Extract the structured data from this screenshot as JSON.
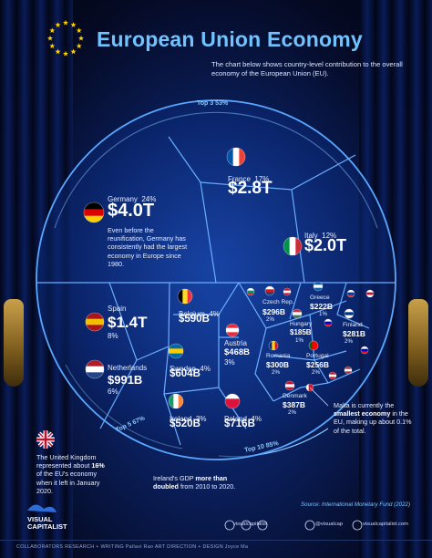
{
  "title": "European Union Economy",
  "subtitle": "The chart below shows country-level contribution to the overall economy of the European Union (EU).",
  "chart_data": {
    "type": "voronoi-treemap",
    "unit": "USD",
    "rings": [
      {
        "label": "Top 3",
        "pct": "53%"
      },
      {
        "label": "Top 5",
        "pct": "67%"
      },
      {
        "label": "Top 10",
        "pct": "85%"
      }
    ],
    "countries": [
      {
        "name": "Germany",
        "pct": "24%",
        "value": "$4.0T",
        "value_num": 4.0
      },
      {
        "name": "France",
        "pct": "17%",
        "value": "$2.8T",
        "value_num": 2.8
      },
      {
        "name": "Italy",
        "pct": "12%",
        "value": "$2.0T",
        "value_num": 2.0
      },
      {
        "name": "Spain",
        "pct": "8%",
        "value": "$1.4T",
        "value_num": 1.4
      },
      {
        "name": "Netherlands",
        "pct": "6%",
        "value": "$991B",
        "value_num": 0.991
      },
      {
        "name": "Belgium",
        "pct": "4%",
        "value": "$590B",
        "value_num": 0.59
      },
      {
        "name": "Sweden",
        "pct": "4%",
        "value": "$604B",
        "value_num": 0.604
      },
      {
        "name": "Ireland",
        "pct": "3%",
        "value": "$520B",
        "value_num": 0.52
      },
      {
        "name": "Poland",
        "pct": "4%",
        "value": "$716B",
        "value_num": 0.716
      },
      {
        "name": "Austria",
        "pct": "3%",
        "value": "$468B",
        "value_num": 0.468
      },
      {
        "name": "Czech Rep.",
        "pct": "2%",
        "value": "$296B",
        "value_num": 0.296
      },
      {
        "name": "Greece",
        "pct": "1%",
        "value": "$222B",
        "value_num": 0.222
      },
      {
        "name": "Hungary",
        "pct": "1%",
        "value": "$185B",
        "value_num": 0.185
      },
      {
        "name": "Finland",
        "pct": "2%",
        "value": "$281B",
        "value_num": 0.281
      },
      {
        "name": "Romania",
        "pct": "2%",
        "value": "$300B",
        "value_num": 0.3
      },
      {
        "name": "Portugal",
        "pct": "2%",
        "value": "$256B",
        "value_num": 0.256
      },
      {
        "name": "Denmark",
        "pct": "2%",
        "value": "$387B",
        "value_num": 0.387
      }
    ]
  },
  "notes": {
    "germany": "Even before the reunification, Germany has consistently had the largest economy in Europe since 1980.",
    "malta_pre": "Malta is currently the ",
    "malta_bold": "smallest economy",
    "malta_post": " in the EU, making up about 0.1% of the total.",
    "uk_pre": "The United Kingdom represented about ",
    "uk_bold": "16%",
    "uk_post": " of the EU's economy when it left in January 2020.",
    "ireland_pre": "Ireland's GDP ",
    "ireland_bold": "more than doubled",
    "ireland_post": " from 2010 to 2020."
  },
  "source": "Source: International Monetary Fund (2022)",
  "brand": {
    "line1": "VISUAL",
    "line2": "CAPITALIST"
  },
  "credits": "COLLABORATORS    RESEARCH + WRITING Pallavi Rao    ART DIRECTION + DESIGN Joyce Ma",
  "social": [
    "visualcapitalist",
    "@visualcap",
    "visualcapitalist.com"
  ],
  "colors": {
    "accent": "#6fc3ff",
    "line": "#4a90ff",
    "ring": "#8fc9ff"
  }
}
